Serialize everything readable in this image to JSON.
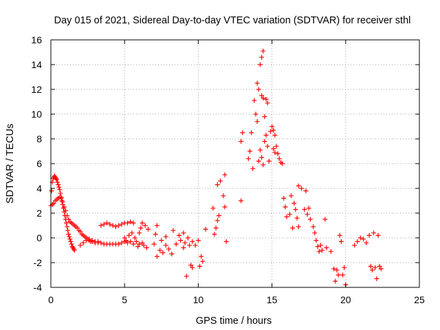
{
  "chart_data": {
    "type": "scatter",
    "title": "Day 015 of 2021, Sidereal Day-to-day VTEC variation (SDTVAR) for receiver sthl",
    "xlabel": "GPS time / hours",
    "ylabel": "SDTVAR / TECUs",
    "xlim": [
      0,
      25
    ],
    "ylim": [
      -4,
      16
    ],
    "xticks": [
      0,
      5,
      10,
      15,
      20,
      25
    ],
    "yticks": [
      -4,
      -2,
      0,
      2,
      4,
      6,
      8,
      10,
      12,
      14,
      16
    ],
    "grid": true,
    "marker": "+",
    "color": "#ff0000",
    "series": [
      {
        "name": "SDTVAR",
        "points": [
          [
            0.0,
            2.6
          ],
          [
            0.05,
            3.8
          ],
          [
            0.1,
            4.5
          ],
          [
            0.1,
            2.7
          ],
          [
            0.15,
            4.8
          ],
          [
            0.2,
            4.9
          ],
          [
            0.2,
            2.8
          ],
          [
            0.25,
            5.0
          ],
          [
            0.3,
            4.9
          ],
          [
            0.3,
            3.0
          ],
          [
            0.35,
            4.8
          ],
          [
            0.4,
            4.7
          ],
          [
            0.4,
            3.1
          ],
          [
            0.45,
            4.5
          ],
          [
            0.5,
            4.3
          ],
          [
            0.5,
            3.2
          ],
          [
            0.55,
            4.1
          ],
          [
            0.6,
            3.9
          ],
          [
            0.6,
            3.3
          ],
          [
            0.65,
            3.6
          ],
          [
            0.7,
            3.3
          ],
          [
            0.7,
            3.2
          ],
          [
            0.75,
            3.0
          ],
          [
            0.8,
            2.7
          ],
          [
            0.8,
            2.9
          ],
          [
            0.85,
            2.4
          ],
          [
            0.9,
            2.1
          ],
          [
            0.9,
            2.5
          ],
          [
            0.95,
            1.8
          ],
          [
            1.0,
            1.5
          ],
          [
            1.0,
            2.2
          ],
          [
            1.05,
            1.2
          ],
          [
            1.1,
            0.9
          ],
          [
            1.1,
            1.8
          ],
          [
            1.15,
            0.6
          ],
          [
            1.2,
            0.3
          ],
          [
            1.2,
            1.5
          ],
          [
            1.25,
            0.1
          ],
          [
            1.3,
            -0.1
          ],
          [
            1.3,
            1.3
          ],
          [
            1.35,
            -0.3
          ],
          [
            1.4,
            -0.5
          ],
          [
            1.4,
            1.2
          ],
          [
            1.45,
            -0.7
          ],
          [
            1.5,
            -0.8
          ],
          [
            1.5,
            1.1
          ],
          [
            1.55,
            -0.9
          ],
          [
            1.6,
            -1.0
          ],
          [
            1.6,
            1.0
          ],
          [
            1.7,
            0.9
          ],
          [
            1.8,
            0.8
          ],
          [
            1.9,
            0.6
          ],
          [
            2.0,
            0.5
          ],
          [
            2.0,
            -0.6
          ],
          [
            2.1,
            0.3
          ],
          [
            2.2,
            0.2
          ],
          [
            2.2,
            -0.4
          ],
          [
            2.3,
            0.1
          ],
          [
            2.4,
            0.0
          ],
          [
            2.4,
            -0.2
          ],
          [
            2.5,
            -0.1
          ],
          [
            2.6,
            -0.2
          ],
          [
            2.6,
            -0.1
          ],
          [
            2.7,
            -0.3
          ],
          [
            2.8,
            -0.3
          ],
          [
            2.8,
            -0.2
          ],
          [
            3.0,
            -0.4
          ],
          [
            3.0,
            -0.3
          ],
          [
            3.2,
            -0.4
          ],
          [
            3.2,
            -0.3
          ],
          [
            3.4,
            -0.4
          ],
          [
            3.4,
            1.0
          ],
          [
            3.6,
            1.1
          ],
          [
            3.6,
            -0.5
          ],
          [
            3.8,
            1.2
          ],
          [
            3.8,
            -0.5
          ],
          [
            4.0,
            1.1
          ],
          [
            4.0,
            -0.5
          ],
          [
            4.2,
            1.0
          ],
          [
            4.2,
            -0.5
          ],
          [
            4.4,
            0.9
          ],
          [
            4.4,
            -0.5
          ],
          [
            4.6,
            1.0
          ],
          [
            4.6,
            -0.5
          ],
          [
            4.8,
            1.1
          ],
          [
            4.8,
            -0.4
          ],
          [
            5.0,
            1.2
          ],
          [
            5.0,
            -0.3
          ],
          [
            5.0,
            0.0
          ],
          [
            5.1,
            -0.2
          ],
          [
            5.2,
            1.2
          ],
          [
            5.2,
            -0.4
          ],
          [
            5.3,
            0.2
          ],
          [
            5.4,
            1.3
          ],
          [
            5.4,
            -0.3
          ],
          [
            5.5,
            0.4
          ],
          [
            5.6,
            1.2
          ],
          [
            5.6,
            -0.5
          ],
          [
            5.7,
            0.0
          ],
          [
            5.8,
            -0.3
          ],
          [
            5.9,
            -0.7
          ],
          [
            6.0,
            -0.5
          ],
          [
            6.0,
            0.4
          ],
          [
            6.1,
            0.8
          ],
          [
            6.2,
            -0.4
          ],
          [
            6.2,
            1.2
          ],
          [
            6.3,
            -0.6
          ],
          [
            6.4,
            1.0
          ],
          [
            6.5,
            -0.8
          ],
          [
            6.6,
            0.7
          ],
          [
            7.0,
            -0.5
          ],
          [
            7.1,
            0.3
          ],
          [
            7.2,
            -1.5
          ],
          [
            7.2,
            1.0
          ],
          [
            7.4,
            -1.0
          ],
          [
            7.5,
            -0.2
          ],
          [
            7.6,
            -1.2
          ],
          [
            7.8,
            0.1
          ],
          [
            7.8,
            -0.6
          ],
          [
            8.0,
            -0.9
          ],
          [
            8.2,
            -1.3
          ],
          [
            8.3,
            0.6
          ],
          [
            8.5,
            -0.5
          ],
          [
            8.7,
            0.2
          ],
          [
            8.8,
            -0.2
          ],
          [
            9.0,
            0.4
          ],
          [
            9.0,
            -0.8
          ],
          [
            9.1,
            -0.4
          ],
          [
            9.2,
            -3.1
          ],
          [
            9.3,
            0.0
          ],
          [
            9.4,
            -0.6
          ],
          [
            9.5,
            -2.2
          ],
          [
            9.6,
            -2.4
          ],
          [
            9.6,
            -0.3
          ],
          [
            9.8,
            -0.6
          ],
          [
            10.0,
            -0.2
          ],
          [
            10.1,
            -2.3
          ],
          [
            10.2,
            -1.5
          ],
          [
            10.3,
            -1.9
          ],
          [
            10.5,
            0.7
          ],
          [
            11.0,
            2.4
          ],
          [
            11.1,
            0.3
          ],
          [
            11.2,
            0.8
          ],
          [
            11.3,
            1.4
          ],
          [
            11.3,
            4.3
          ],
          [
            11.4,
            1.8
          ],
          [
            11.5,
            4.6
          ],
          [
            11.7,
            3.4
          ],
          [
            11.8,
            5.1
          ],
          [
            11.9,
            -0.3
          ],
          [
            11.8,
            2.5
          ],
          [
            12.9,
            7.8
          ],
          [
            12.9,
            3.0
          ],
          [
            13.0,
            8.5
          ],
          [
            13.4,
            6.4
          ],
          [
            13.5,
            7.0
          ],
          [
            13.6,
            8.5
          ],
          [
            13.7,
            5.6
          ],
          [
            13.8,
            11.1
          ],
          [
            13.9,
            10.0
          ],
          [
            14.0,
            12.5
          ],
          [
            14.0,
            9.4
          ],
          [
            14.1,
            12.0
          ],
          [
            14.1,
            6.2
          ],
          [
            14.2,
            14.0
          ],
          [
            14.2,
            7.1
          ],
          [
            14.3,
            14.6
          ],
          [
            14.3,
            11.5
          ],
          [
            14.3,
            6.5
          ],
          [
            14.4,
            15.1
          ],
          [
            14.4,
            11.3
          ],
          [
            14.4,
            5.9
          ],
          [
            14.5,
            9.8
          ],
          [
            14.5,
            7.8
          ],
          [
            14.6,
            11.2
          ],
          [
            14.6,
            8.3
          ],
          [
            14.7,
            10.9
          ],
          [
            14.7,
            7.4
          ],
          [
            14.8,
            6.2
          ],
          [
            14.9,
            8.6
          ],
          [
            15.0,
            9.0
          ],
          [
            15.1,
            7.2
          ],
          [
            15.1,
            8.7
          ],
          [
            15.2,
            6.9
          ],
          [
            15.2,
            8.3
          ],
          [
            15.3,
            7.4
          ],
          [
            15.4,
            6.8
          ],
          [
            15.5,
            6.4
          ],
          [
            15.6,
            6.1
          ],
          [
            15.7,
            6.0
          ],
          [
            15.8,
            3.2
          ],
          [
            15.9,
            2.5
          ],
          [
            16.0,
            1.7
          ],
          [
            16.2,
            1.9
          ],
          [
            16.3,
            3.4
          ],
          [
            16.4,
            0.8
          ],
          [
            16.5,
            2.8
          ],
          [
            16.6,
            2.3
          ],
          [
            16.7,
            1.6
          ],
          [
            16.8,
            0.9
          ],
          [
            16.8,
            4.2
          ],
          [
            17.0,
            4.0
          ],
          [
            17.2,
            2.3
          ],
          [
            17.3,
            3.8
          ],
          [
            17.4,
            1.9
          ],
          [
            17.5,
            2.4
          ],
          [
            17.6,
            1.5
          ],
          [
            17.8,
            0.9
          ],
          [
            17.9,
            0.4
          ],
          [
            18.0,
            -0.2
          ],
          [
            18.1,
            -0.7
          ],
          [
            18.2,
            -1.1
          ],
          [
            18.3,
            -0.6
          ],
          [
            18.4,
            -1.0
          ],
          [
            18.6,
            1.5
          ],
          [
            18.7,
            -0.8
          ],
          [
            19.0,
            -1.1
          ],
          [
            19.2,
            -2.5
          ],
          [
            19.3,
            -3.5
          ],
          [
            19.4,
            -2.6
          ],
          [
            19.5,
            -3.0
          ],
          [
            19.6,
            0.2
          ],
          [
            19.7,
            -0.3
          ],
          [
            19.8,
            -3.0
          ],
          [
            19.9,
            -2.4
          ],
          [
            20.0,
            -3.8
          ],
          [
            20.6,
            -0.6
          ],
          [
            20.8,
            -0.3
          ],
          [
            21.0,
            0.0
          ],
          [
            21.2,
            -0.1
          ],
          [
            21.4,
            -0.4
          ],
          [
            21.6,
            0.2
          ],
          [
            21.7,
            -2.3
          ],
          [
            21.8,
            -2.6
          ],
          [
            21.9,
            0.4
          ],
          [
            22.0,
            -2.4
          ],
          [
            22.1,
            -3.3
          ],
          [
            22.2,
            0.2
          ],
          [
            22.3,
            -2.3
          ],
          [
            22.4,
            -2.5
          ]
        ]
      }
    ]
  }
}
